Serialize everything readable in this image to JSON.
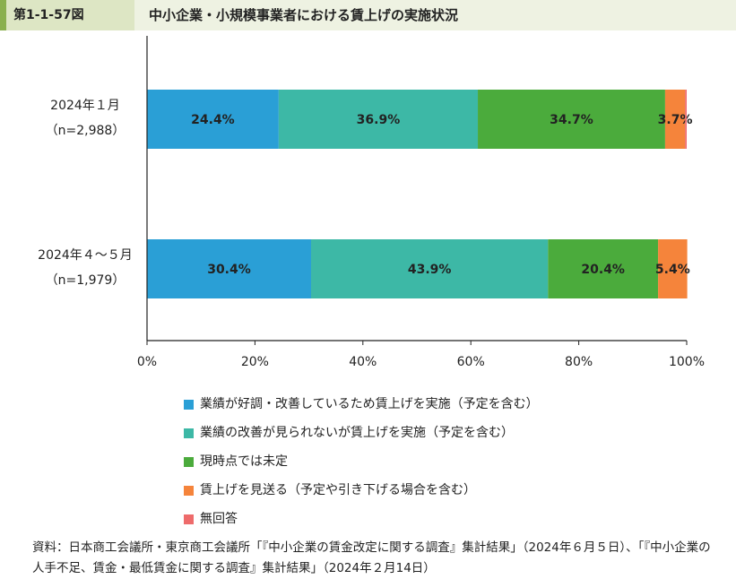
{
  "header": {
    "figure_number": "第1-1-57図",
    "title": "中小企業・小規模事業者における賃上げの実施状況"
  },
  "chart_data": {
    "type": "bar",
    "orientation": "horizontal",
    "stacked": true,
    "title": "中小企業・小規模事業者における賃上げの実施状況",
    "categories": [
      {
        "label": "2024年１月",
        "n": "（n=2,988）"
      },
      {
        "label": "2024年４～５月",
        "n": "（n=1,979）"
      }
    ],
    "series": [
      {
        "name": "業績が好調・改善しているため賃上げを実施（予定を含む）",
        "color": "#2a9fd6",
        "values": [
          24.4,
          30.4
        ],
        "labels": [
          "24.4%",
          "30.4%"
        ]
      },
      {
        "name": "業績の改善が見られないが賃上げを実施（予定を含む）",
        "color": "#3db8a6",
        "values": [
          36.9,
          43.9
        ],
        "labels": [
          "36.9%",
          "43.9%"
        ]
      },
      {
        "name": "現時点では未定",
        "color": "#4bab3c",
        "values": [
          34.7,
          20.4
        ],
        "labels": [
          "34.7%",
          "20.4%"
        ]
      },
      {
        "name": "賃上げを見送る（予定や引き下げる場合を含む）",
        "color": "#f5843b",
        "values": [
          3.7,
          5.4
        ],
        "labels": [
          "3.7%",
          "5.4%"
        ]
      },
      {
        "name": "無回答",
        "color": "#ee6b6b",
        "values": [
          0.3,
          0.0
        ],
        "labels": [
          "",
          ""
        ]
      }
    ],
    "x_axis": {
      "min": 0,
      "max": 100,
      "ticks": [
        "0%",
        "20%",
        "40%",
        "60%",
        "80%",
        "100%"
      ]
    },
    "grid": false,
    "legend_position": "bottom"
  },
  "source": "資料：日本商工会議所・東京商工会議所「『中小企業の賃金改定に関する調査』集計結果」（2024年６月５日）、「『中小企業の人手不足、賃金・最低賃金に関する調査』集計結果」（2024年２月14日）"
}
